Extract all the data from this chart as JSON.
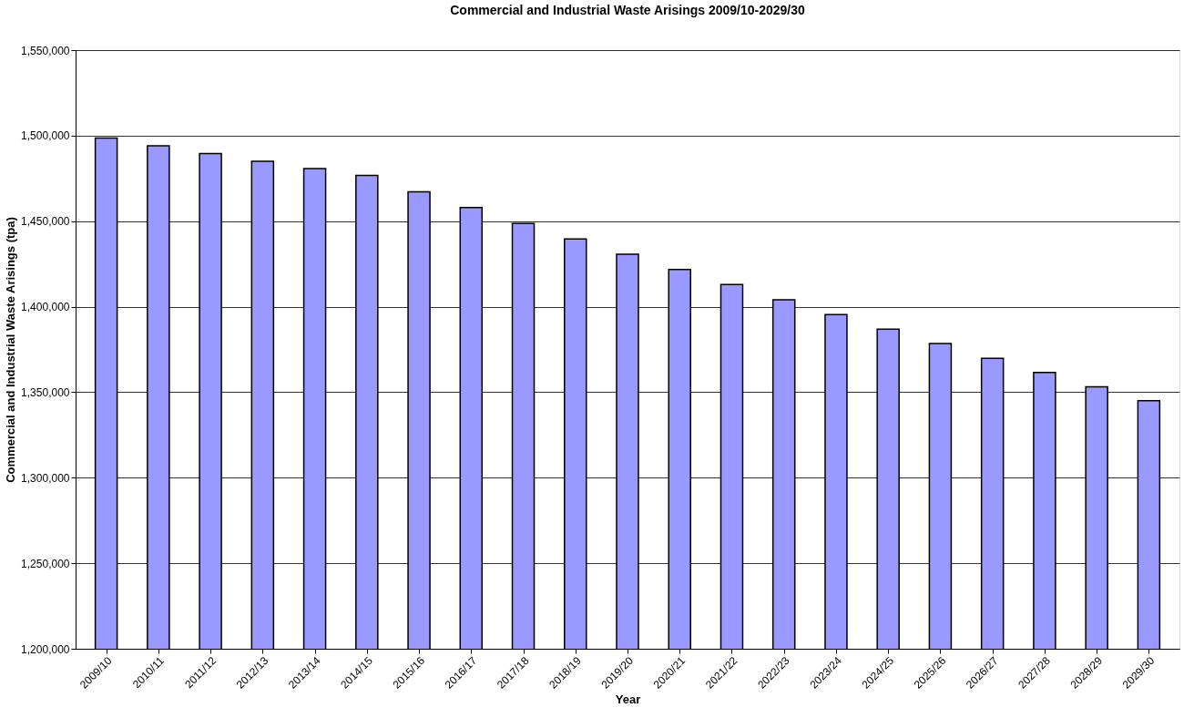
{
  "chart_data": {
    "type": "bar",
    "title": "Commercial and Industrial Waste Arisings 2009/10-2029/30",
    "xlabel": "Year",
    "ylabel": "Commercial and Industrial Waste Arisings (tpa)",
    "categories": [
      "2009/10",
      "2010/11",
      "2011/12",
      "2012/13",
      "2013/14",
      "2014/15",
      "2015/16",
      "2016/17",
      "2017/18",
      "2018/19",
      "2019/20",
      "2020/21",
      "2021/22",
      "2022/23",
      "2023/24",
      "2024/25",
      "2025/26",
      "2026/27",
      "2027/28",
      "2028/29",
      "2029/30"
    ],
    "values": [
      1498600,
      1494000,
      1489500,
      1485000,
      1480700,
      1476800,
      1467200,
      1458000,
      1448600,
      1439600,
      1430700,
      1421700,
      1412900,
      1404100,
      1395400,
      1386900,
      1378400,
      1369800,
      1361500,
      1353200,
      1345000
    ],
    "color": "#9999ff",
    "ylim": [
      1200000,
      1550000
    ],
    "yticks": [
      {
        "value": 1200000,
        "label": "1,200,000"
      },
      {
        "value": 1250000,
        "label": "1,250,000"
      },
      {
        "value": 1300000,
        "label": "1,300,000"
      },
      {
        "value": 1350000,
        "label": "1,350,000"
      },
      {
        "value": 1400000,
        "label": "1,400,000"
      },
      {
        "value": 1450000,
        "label": "1,450,000"
      },
      {
        "value": 1500000,
        "label": "1,500,000"
      },
      {
        "value": 1550000,
        "label": "1,550,000"
      }
    ],
    "grid": "y"
  }
}
